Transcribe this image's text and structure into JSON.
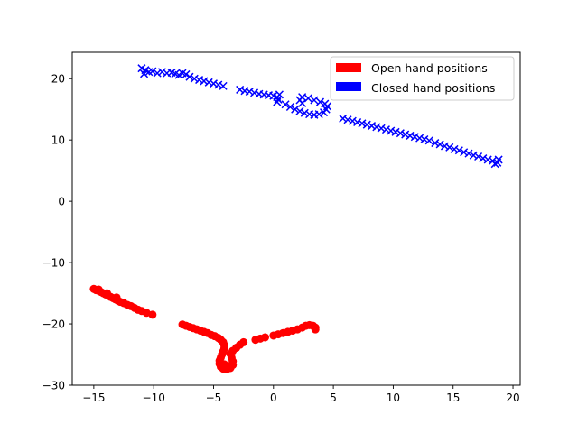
{
  "chart_data": {
    "type": "scatter",
    "title": "",
    "xlabel": "",
    "ylabel": "",
    "xlim": [
      -16.8,
      20.6
    ],
    "ylim": [
      -30,
      24.3
    ],
    "x_ticks": [
      -15,
      -10,
      -5,
      0,
      5,
      10,
      15,
      20
    ],
    "y_ticks": [
      -30,
      -20,
      -10,
      0,
      10,
      20
    ],
    "x_tick_labels": [
      "−15",
      "−10",
      "−5",
      "0",
      "5",
      "10",
      "15",
      "20"
    ],
    "y_tick_labels": [
      "−30",
      "−20",
      "−10",
      "0",
      "10",
      "20"
    ],
    "grid": false,
    "legend": {
      "placement": "top-right",
      "entries": [
        {
          "label": "Open hand positions",
          "color": "#ff0000"
        },
        {
          "label": "Closed hand positions",
          "color": "#0000ff"
        }
      ]
    },
    "series": [
      {
        "name": "Open hand positions",
        "marker": "circle",
        "color": "#ff0000",
        "points": [
          [
            -15.0,
            -14.3
          ],
          [
            -14.8,
            -14.5
          ],
          [
            -14.6,
            -14.6
          ],
          [
            -14.4,
            -14.8
          ],
          [
            -14.2,
            -15.0
          ],
          [
            -14.0,
            -15.2
          ],
          [
            -13.8,
            -15.4
          ],
          [
            -13.6,
            -15.6
          ],
          [
            -13.4,
            -15.8
          ],
          [
            -13.2,
            -16.0
          ],
          [
            -13.0,
            -16.2
          ],
          [
            -12.8,
            -16.4
          ],
          [
            -12.5,
            -16.6
          ],
          [
            -12.2,
            -16.9
          ],
          [
            -11.9,
            -17.1
          ],
          [
            -11.6,
            -17.4
          ],
          [
            -11.3,
            -17.7
          ],
          [
            -11.0,
            -17.9
          ],
          [
            -10.6,
            -18.2
          ],
          [
            -10.1,
            -18.5
          ],
          [
            -14.6,
            -14.4
          ],
          [
            -13.9,
            -15.0
          ],
          [
            -13.1,
            -15.7
          ],
          [
            -7.6,
            -20.1
          ],
          [
            -7.3,
            -20.3
          ],
          [
            -7.0,
            -20.5
          ],
          [
            -6.7,
            -20.7
          ],
          [
            -6.4,
            -20.9
          ],
          [
            -6.1,
            -21.1
          ],
          [
            -5.8,
            -21.3
          ],
          [
            -5.5,
            -21.5
          ],
          [
            -5.2,
            -21.8
          ],
          [
            -4.9,
            -22.0
          ],
          [
            -4.6,
            -22.3
          ],
          [
            -4.4,
            -22.6
          ],
          [
            -4.2,
            -23.0
          ],
          [
            -4.1,
            -23.5
          ],
          [
            -4.1,
            -24.0
          ],
          [
            -4.2,
            -24.5
          ],
          [
            -4.3,
            -25.0
          ],
          [
            -4.4,
            -25.5
          ],
          [
            -4.5,
            -26.0
          ],
          [
            -4.5,
            -26.5
          ],
          [
            -4.4,
            -27.0
          ],
          [
            -4.2,
            -27.3
          ],
          [
            -3.9,
            -27.4
          ],
          [
            -3.6,
            -27.2
          ],
          [
            -3.4,
            -26.7
          ],
          [
            -3.4,
            -26.1
          ],
          [
            -3.5,
            -25.5
          ],
          [
            -3.6,
            -24.9
          ],
          [
            -3.4,
            -24.4
          ],
          [
            -3.1,
            -23.9
          ],
          [
            -2.8,
            -23.4
          ],
          [
            -2.5,
            -23.0
          ],
          [
            -4.1,
            -26.6
          ],
          [
            -3.8,
            -26.9
          ],
          [
            -1.5,
            -22.6
          ],
          [
            -1.1,
            -22.4
          ],
          [
            -0.7,
            -22.2
          ],
          [
            0.0,
            -21.9
          ],
          [
            0.4,
            -21.7
          ],
          [
            0.8,
            -21.5
          ],
          [
            1.2,
            -21.3
          ],
          [
            1.6,
            -21.1
          ],
          [
            2.0,
            -20.9
          ],
          [
            2.4,
            -20.6
          ],
          [
            2.7,
            -20.3
          ],
          [
            3.0,
            -20.2
          ],
          [
            3.3,
            -20.3
          ],
          [
            3.5,
            -20.6
          ],
          [
            3.5,
            -20.9
          ]
        ]
      },
      {
        "name": "Closed hand positions",
        "marker": "x",
        "color": "#0000ff",
        "points": [
          [
            -11.0,
            21.7
          ],
          [
            -10.7,
            21.4
          ],
          [
            -10.4,
            21.1
          ],
          [
            -10.8,
            20.8
          ],
          [
            -10.1,
            21.2
          ],
          [
            -9.7,
            20.9
          ],
          [
            -9.3,
            21.1
          ],
          [
            -8.9,
            20.9
          ],
          [
            -8.5,
            21.0
          ],
          [
            -8.2,
            20.8
          ],
          [
            -7.9,
            20.6
          ],
          [
            -7.6,
            20.9
          ],
          [
            -7.3,
            20.7
          ],
          [
            -7.0,
            20.3
          ],
          [
            -6.6,
            20.0
          ],
          [
            -6.2,
            19.8
          ],
          [
            -5.8,
            19.6
          ],
          [
            -5.4,
            19.4
          ],
          [
            -5.0,
            19.2
          ],
          [
            -4.6,
            19.0
          ],
          [
            -4.2,
            18.8
          ],
          [
            -2.8,
            18.2
          ],
          [
            -2.4,
            18.0
          ],
          [
            -2.0,
            17.9
          ],
          [
            -1.6,
            17.7
          ],
          [
            -1.2,
            17.5
          ],
          [
            -0.8,
            17.4
          ],
          [
            -0.4,
            17.3
          ],
          [
            0.0,
            17.2
          ],
          [
            0.3,
            17.0
          ],
          [
            0.4,
            16.6
          ],
          [
            0.3,
            16.2
          ],
          [
            0.5,
            17.4
          ],
          [
            1.0,
            15.8
          ],
          [
            1.4,
            15.4
          ],
          [
            1.8,
            15.0
          ],
          [
            2.2,
            14.7
          ],
          [
            2.6,
            14.4
          ],
          [
            3.0,
            14.2
          ],
          [
            3.4,
            14.1
          ],
          [
            3.8,
            14.2
          ],
          [
            4.2,
            14.5
          ],
          [
            4.4,
            15.0
          ],
          [
            4.5,
            15.5
          ],
          [
            4.3,
            15.9
          ],
          [
            3.9,
            16.2
          ],
          [
            3.4,
            16.5
          ],
          [
            2.9,
            16.8
          ],
          [
            2.4,
            17.0
          ],
          [
            2.2,
            16.5
          ],
          [
            2.4,
            16.0
          ],
          [
            5.8,
            13.5
          ],
          [
            6.2,
            13.3
          ],
          [
            6.6,
            13.1
          ],
          [
            7.0,
            12.9
          ],
          [
            7.4,
            12.7
          ],
          [
            7.8,
            12.5
          ],
          [
            8.2,
            12.3
          ],
          [
            8.6,
            12.1
          ],
          [
            9.0,
            11.9
          ],
          [
            9.4,
            11.7
          ],
          [
            9.8,
            11.5
          ],
          [
            10.2,
            11.3
          ],
          [
            10.6,
            11.1
          ],
          [
            11.0,
            10.9
          ],
          [
            11.4,
            10.7
          ],
          [
            11.8,
            10.5
          ],
          [
            12.2,
            10.3
          ],
          [
            12.6,
            10.1
          ],
          [
            13.0,
            9.9
          ],
          [
            13.5,
            9.5
          ],
          [
            13.9,
            9.3
          ],
          [
            14.3,
            9.0
          ],
          [
            14.7,
            8.8
          ],
          [
            15.1,
            8.5
          ],
          [
            15.5,
            8.3
          ],
          [
            15.9,
            8.0
          ],
          [
            16.3,
            7.8
          ],
          [
            16.7,
            7.5
          ],
          [
            17.1,
            7.3
          ],
          [
            17.5,
            7.0
          ],
          [
            17.9,
            6.8
          ],
          [
            18.3,
            6.6
          ],
          [
            18.7,
            6.3
          ],
          [
            18.8,
            6.8
          ],
          [
            18.5,
            6.1
          ]
        ]
      }
    ]
  }
}
